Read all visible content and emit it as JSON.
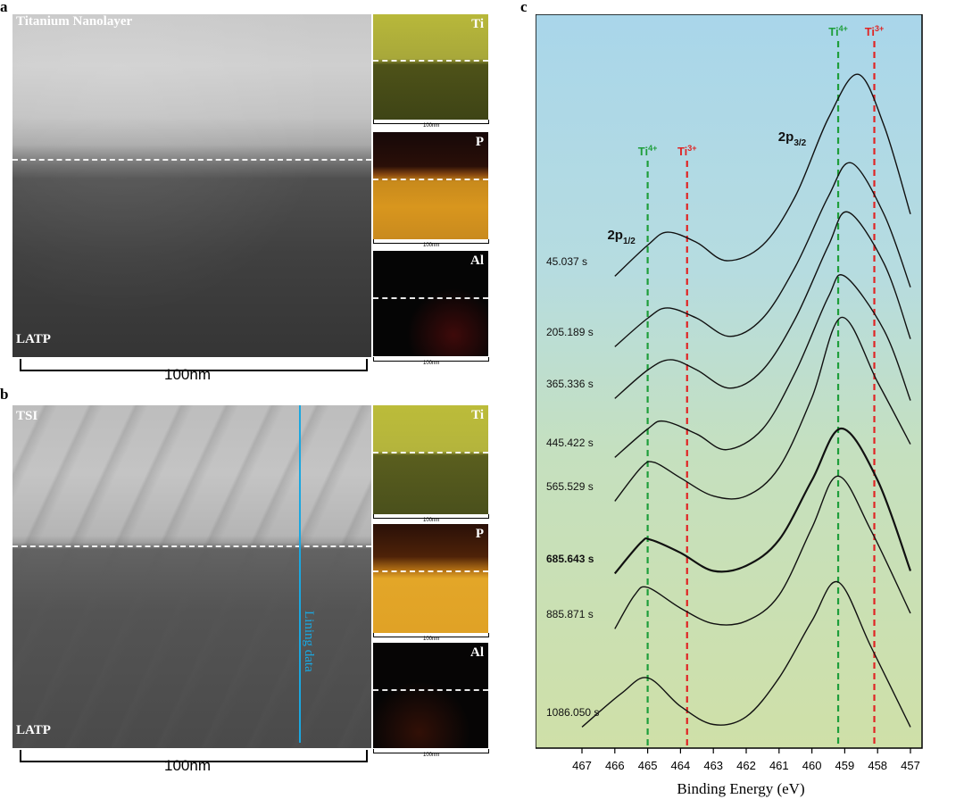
{
  "panels": {
    "a": {
      "letter": "a",
      "image_label_top": "Titanium Nanolayer",
      "image_label_bottom": "LATP",
      "scalebar": "100nm",
      "maps": [
        {
          "element": "Ti",
          "scalebar": "100nm",
          "color": "#c9c84a"
        },
        {
          "element": "P",
          "scalebar": "100nm",
          "color": "#e3a628"
        },
        {
          "element": "Al",
          "scalebar": "100nm",
          "color": "#cc2020"
        }
      ]
    },
    "b": {
      "letter": "b",
      "image_label_top": "TSI",
      "image_label_bottom": "LATP",
      "line_label": "Lining data",
      "line_color": "#1aa7e0",
      "scalebar": "100nm",
      "maps": [
        {
          "element": "Ti",
          "scalebar": "100nm",
          "color": "#c9c84a"
        },
        {
          "element": "P",
          "scalebar": "100nm",
          "color": "#e3a628"
        },
        {
          "element": "Al",
          "scalebar": "100nm",
          "color": "#cc2020"
        }
      ]
    },
    "c": {
      "letter": "c"
    }
  },
  "chart_data": {
    "type": "line",
    "title": "",
    "xlabel": "Binding Energy (eV)",
    "ylabel": "",
    "x_reversed": true,
    "xlim": [
      467,
      457
    ],
    "xticks": [
      467,
      466,
      465,
      464,
      463,
      462,
      461,
      460,
      459,
      458,
      457
    ],
    "grid": false,
    "series": [
      {
        "name": "45.037 s",
        "bold": false,
        "x": [
          466.0,
          465.0,
          464.4,
          463.5,
          462.6,
          461.5,
          460.5,
          459.5,
          458.6,
          457.8,
          457.0
        ],
        "y": [
          0.04,
          0.16,
          0.21,
          0.17,
          0.1,
          0.16,
          0.35,
          0.65,
          0.82,
          0.62,
          0.28
        ]
      },
      {
        "name": "205.189 s",
        "bold": false,
        "x": [
          466.0,
          465.0,
          464.4,
          463.5,
          462.5,
          461.5,
          460.5,
          459.5,
          458.8,
          457.8,
          457.0
        ],
        "y": [
          0.04,
          0.15,
          0.19,
          0.15,
          0.08,
          0.15,
          0.35,
          0.62,
          0.75,
          0.55,
          0.27
        ]
      },
      {
        "name": "365.336 s",
        "bold": false,
        "x": [
          466.0,
          465.0,
          464.3,
          463.5,
          462.5,
          461.5,
          460.5,
          459.5,
          458.9,
          457.8,
          457.0
        ],
        "y": [
          0.04,
          0.15,
          0.19,
          0.15,
          0.08,
          0.15,
          0.35,
          0.63,
          0.76,
          0.56,
          0.27
        ]
      },
      {
        "name": "445.422 s",
        "bold": false,
        "x": [
          466.0,
          465.0,
          464.5,
          463.5,
          462.6,
          461.5,
          460.5,
          459.5,
          459.0,
          457.8,
          457.0
        ],
        "y": [
          0.04,
          0.15,
          0.18,
          0.13,
          0.07,
          0.15,
          0.37,
          0.66,
          0.74,
          0.53,
          0.26
        ]
      },
      {
        "name": "565.529 s",
        "bold": false,
        "x": [
          466.0,
          465.2,
          464.8,
          464.0,
          463.0,
          462.0,
          461.0,
          460.0,
          459.1,
          458.0,
          457.0
        ],
        "y": [
          0.04,
          0.17,
          0.19,
          0.13,
          0.06,
          0.06,
          0.17,
          0.44,
          0.75,
          0.5,
          0.26
        ]
      },
      {
        "name": "685.643 s",
        "bold": true,
        "x": [
          466.0,
          465.2,
          464.9,
          464.0,
          463.0,
          462.0,
          461.0,
          460.0,
          459.1,
          458.0,
          457.0
        ],
        "y": [
          0.04,
          0.16,
          0.17,
          0.12,
          0.05,
          0.07,
          0.17,
          0.4,
          0.6,
          0.4,
          0.05
        ]
      },
      {
        "name": "885.871 s",
        "bold": false,
        "x": [
          466.0,
          465.4,
          465.0,
          464.0,
          463.0,
          462.0,
          461.0,
          460.0,
          459.2,
          458.2,
          457.0
        ],
        "y": [
          0.04,
          0.17,
          0.2,
          0.12,
          0.06,
          0.07,
          0.17,
          0.43,
          0.63,
          0.42,
          0.1
        ]
      },
      {
        "name": "1086.050 s",
        "bold": false,
        "x": [
          467.0,
          465.8,
          465.0,
          464.0,
          463.0,
          462.0,
          461.0,
          460.0,
          459.2,
          458.2,
          457.0
        ],
        "y": [
          0.04,
          0.17,
          0.23,
          0.12,
          0.05,
          0.08,
          0.23,
          0.45,
          0.6,
          0.35,
          0.04
        ]
      }
    ],
    "reference_lines": [
      {
        "label_base": "Ti",
        "label_sup": "4+",
        "x": 465.0,
        "color": "#1e9e3a",
        "group": "2p1/2"
      },
      {
        "label_base": "Ti",
        "label_sup": "3+",
        "x": 463.8,
        "color": "#e02424",
        "group": "2p1/2"
      },
      {
        "label_base": "Ti",
        "label_sup": "4+",
        "x": 459.2,
        "color": "#1e9e3a",
        "group": "2p3/2"
      },
      {
        "label_base": "Ti",
        "label_sup": "3+",
        "x": 458.1,
        "color": "#e02424",
        "group": "2p3/2"
      }
    ],
    "annotations": [
      {
        "base": "2p",
        "sub": "1/2",
        "x": 465.8
      },
      {
        "base": "2p",
        "sub": "3/2",
        "x": 460.6
      }
    ],
    "background_gradient": [
      "#a9d6ea",
      "#b6dce0",
      "#c5e0bf",
      "#cfe0a8"
    ]
  }
}
